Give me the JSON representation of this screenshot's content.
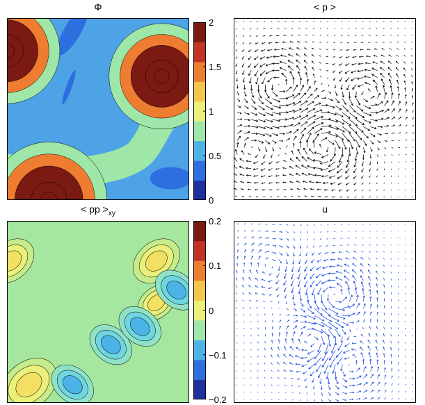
{
  "colors": {
    "contour_levels": [
      "#1e2f9e",
      "#2e6fe0",
      "#4cb3e6",
      "#9ee7a8",
      "#eaf07a",
      "#f3c64a",
      "#ef7d31",
      "#c43224",
      "#7a1a12"
    ],
    "frame": "#000000",
    "arrow_black": "#111111",
    "arrow_blue": "#2452e6"
  },
  "chart_data": [
    {
      "type": "heatmap",
      "title": "Φ",
      "colorbar": {
        "ticks": [
          "2",
          "1.5",
          "1",
          "0.5",
          "0"
        ],
        "range": [
          0,
          2
        ]
      },
      "domain": [
        0,
        1
      ],
      "peaks": [
        {
          "x": 0.0,
          "y": 0.82,
          "value": 2.0,
          "radius": 0.2
        },
        {
          "x": 0.85,
          "y": 0.68,
          "value": 2.0,
          "radius": 0.2
        },
        {
          "x": 0.23,
          "y": 0.0,
          "value": 2.0,
          "radius": 0.22
        }
      ]
    },
    {
      "type": "quiver",
      "title": "< p >",
      "color": "black",
      "grid": [
        26,
        26
      ],
      "vortices": [
        {
          "x": 0.25,
          "y": 0.63,
          "strength": 1.0
        },
        {
          "x": 0.5,
          "y": 0.3,
          "strength": -1.2
        },
        {
          "x": 0.73,
          "y": 0.58,
          "strength": 0.9
        },
        {
          "x": 0.1,
          "y": 0.28,
          "strength": -0.7
        }
      ]
    },
    {
      "type": "heatmap",
      "title": "< pp >",
      "title_sub": "xy",
      "colorbar": {
        "ticks": [
          "0.2",
          "0.1",
          "0",
          "−0.1",
          "−0.2"
        ],
        "range": [
          -0.2,
          0.2
        ]
      },
      "domain": [
        0,
        1
      ],
      "features": [
        {
          "x": 0.12,
          "y": 0.1,
          "value": 0.09,
          "radius": 0.12
        },
        {
          "x": 0.02,
          "y": 0.78,
          "value": 0.08,
          "radius": 0.1
        },
        {
          "x": 0.82,
          "y": 0.78,
          "value": 0.08,
          "radius": 0.1
        },
        {
          "x": 0.82,
          "y": 0.55,
          "value": 0.06,
          "radius": 0.08
        },
        {
          "x": 0.36,
          "y": 0.1,
          "value": -0.09,
          "radius": 0.09
        },
        {
          "x": 0.57,
          "y": 0.32,
          "value": -0.1,
          "radius": 0.09
        },
        {
          "x": 0.93,
          "y": 0.62,
          "value": -0.08,
          "radius": 0.09
        },
        {
          "x": 0.73,
          "y": 0.42,
          "value": -0.05,
          "radius": 0.09
        }
      ]
    },
    {
      "type": "quiver",
      "title": "u",
      "color": "blue",
      "grid": [
        26,
        26
      ],
      "vortices": [
        {
          "x": 0.55,
          "y": 0.58,
          "strength": 1.1
        },
        {
          "x": 0.45,
          "y": 0.35,
          "strength": -1.0
        },
        {
          "x": 0.62,
          "y": 0.22,
          "strength": 0.9
        },
        {
          "x": 0.2,
          "y": 0.75,
          "strength": -0.5
        }
      ]
    }
  ]
}
